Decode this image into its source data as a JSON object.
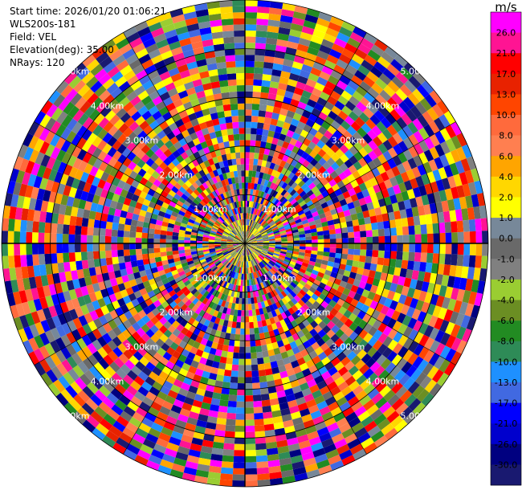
{
  "info": {
    "start_time": "Start time: 2026/01/20 01:06:21",
    "instrument": "WLS200s-181",
    "field": "Field: VEL",
    "elevation": "Elevation(deg): 35.00",
    "nrays": "NRays: 120"
  },
  "chart_data": {
    "type": "polar-ppi",
    "field": "VEL",
    "elevation_deg": 35.0,
    "nrays": 120,
    "range_rings_km": [
      1.0,
      2.0,
      3.0,
      4.0,
      5.0
    ],
    "ring_label_text": [
      "1.00km",
      "2.00km",
      "3.00km",
      "4.00km",
      "5.00km"
    ],
    "max_range_km": 5.0,
    "colorbar": {
      "unit": "m/s",
      "labels": [
        "26.0",
        "21.0",
        "17.0",
        "13.0",
        "10.0",
        "8.0",
        "6.0",
        "4.0",
        "2.0",
        "1.0",
        "0.0",
        "-1.0",
        "-2.0",
        "-4.0",
        "-6.0",
        "-8.0",
        "-10.0",
        "-13.0",
        "-17.0",
        "-21.0",
        "-26.0",
        "-30.0"
      ],
      "colors": [
        "#ff00ff",
        "#ff1493",
        "#ff0000",
        "#e82200",
        "#ff4500",
        "#ff6a3c",
        "#ff7f50",
        "#ffa500",
        "#ffd700",
        "#ffff00",
        "#778899",
        "#696969",
        "#808080",
        "#9acd32",
        "#6b8e23",
        "#228b22",
        "#2e8b57",
        "#1e90ff",
        "#4169e1",
        "#0000ff",
        "#0000cd",
        "#000080",
        "#191970"
      ]
    }
  }
}
